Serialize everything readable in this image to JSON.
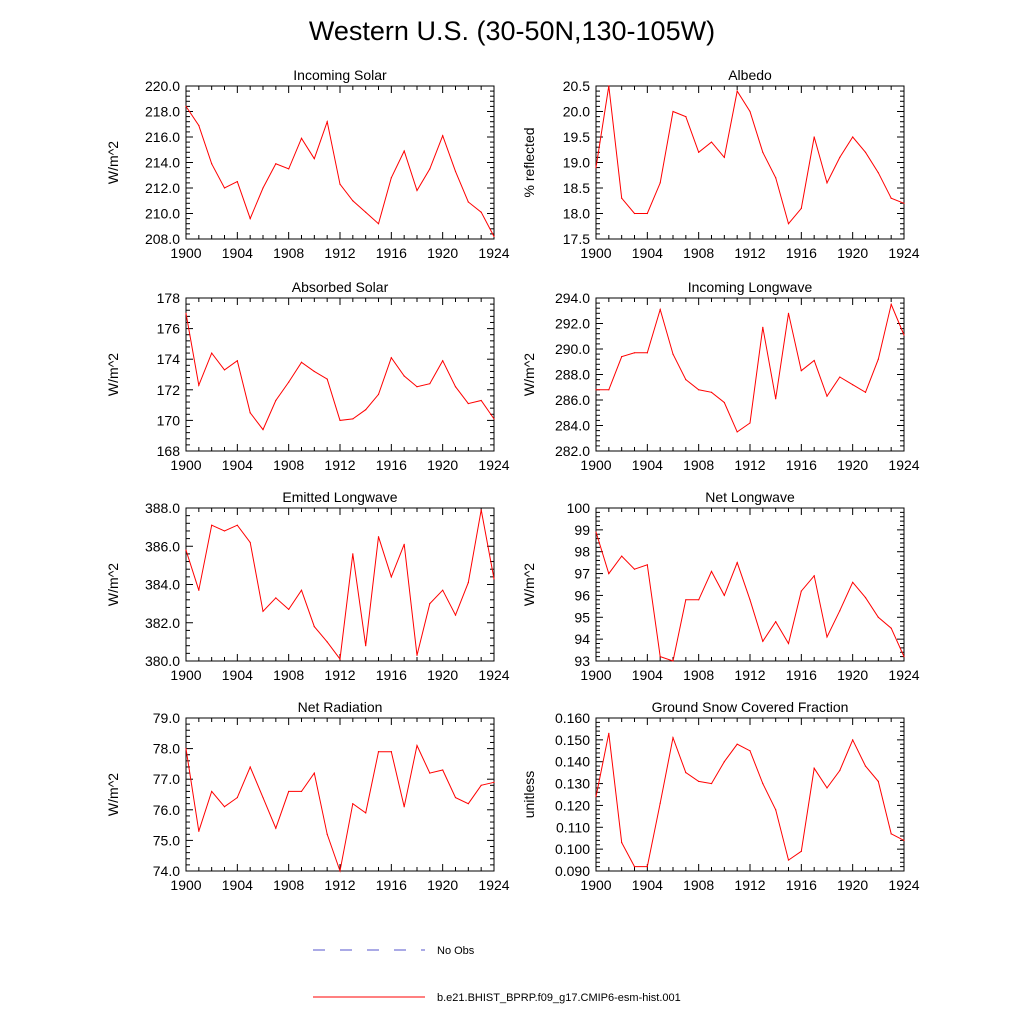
{
  "title": "Western U.S. (30-50N,130-105W)",
  "colors": {
    "model": "#ff0000",
    "obs": "#5555cc",
    "axis": "#000000"
  },
  "legend": {
    "obs_label": "No Obs",
    "model_label": "b.e21.BHIST_BPRP.f09_g17.CMIP6-esm-hist.001"
  },
  "chart_data": [
    {
      "type": "line",
      "title": "Incoming Solar",
      "ylabel": "W/m^2",
      "x": [
        1900,
        1901,
        1902,
        1903,
        1904,
        1905,
        1906,
        1907,
        1908,
        1909,
        1910,
        1911,
        1912,
        1913,
        1914,
        1915,
        1916,
        1917,
        1918,
        1919,
        1920,
        1921,
        1922,
        1923,
        1924
      ],
      "xlim": [
        1900,
        1924
      ],
      "xticks": [
        "1900",
        "1904",
        "1908",
        "1912",
        "1916",
        "1920",
        "1924"
      ],
      "ylim": [
        208.0,
        220.0
      ],
      "yticks": [
        "208.0",
        "210.0",
        "212.0",
        "214.0",
        "216.0",
        "218.0",
        "220.0"
      ],
      "yminor": 4,
      "values": [
        218.4,
        216.9,
        213.9,
        212.0,
        212.5,
        209.6,
        212.0,
        213.9,
        213.5,
        215.9,
        214.3,
        217.2,
        212.3,
        211.0,
        210.1,
        209.2,
        212.8,
        214.9,
        211.8,
        213.5,
        216.1,
        213.3,
        210.9,
        210.1,
        208.2
      ]
    },
    {
      "type": "line",
      "title": "Albedo",
      "ylabel": "% reflected",
      "x": [
        1900,
        1901,
        1902,
        1903,
        1904,
        1905,
        1906,
        1907,
        1908,
        1909,
        1910,
        1911,
        1912,
        1913,
        1914,
        1915,
        1916,
        1917,
        1918,
        1919,
        1920,
        1921,
        1922,
        1923,
        1924
      ],
      "xlim": [
        1900,
        1924
      ],
      "xticks": [
        "1900",
        "1904",
        "1908",
        "1912",
        "1916",
        "1920",
        "1924"
      ],
      "ylim": [
        17.5,
        20.5
      ],
      "yticks": [
        "17.5",
        "18.0",
        "18.5",
        "19.0",
        "19.5",
        "20.0",
        "20.5"
      ],
      "yminor": 4,
      "values": [
        18.9,
        20.5,
        18.3,
        18.0,
        18.0,
        18.6,
        20.0,
        19.9,
        19.2,
        19.4,
        19.1,
        20.4,
        20.0,
        19.2,
        18.7,
        17.8,
        18.1,
        19.5,
        18.6,
        19.1,
        19.5,
        19.2,
        18.8,
        18.3,
        18.2
      ]
    },
    {
      "type": "line",
      "title": "Absorbed Solar",
      "ylabel": "W/m^2",
      "x": [
        1900,
        1901,
        1902,
        1903,
        1904,
        1905,
        1906,
        1907,
        1908,
        1909,
        1910,
        1911,
        1912,
        1913,
        1914,
        1915,
        1916,
        1917,
        1918,
        1919,
        1920,
        1921,
        1922,
        1923,
        1924
      ],
      "xlim": [
        1900,
        1924
      ],
      "xticks": [
        "1900",
        "1904",
        "1908",
        "1912",
        "1916",
        "1920",
        "1924"
      ],
      "ylim": [
        168,
        178
      ],
      "yticks": [
        "168",
        "170",
        "172",
        "174",
        "176",
        "178"
      ],
      "yminor": 4,
      "values": [
        177.0,
        172.3,
        174.4,
        173.3,
        173.9,
        170.5,
        169.4,
        171.3,
        172.5,
        173.8,
        173.2,
        172.7,
        170.0,
        170.1,
        170.7,
        171.7,
        174.1,
        172.9,
        172.2,
        172.4,
        173.9,
        172.2,
        171.1,
        171.3,
        170.1
      ]
    },
    {
      "type": "line",
      "title": "Incoming Longwave",
      "ylabel": "W/m^2",
      "x": [
        1900,
        1901,
        1902,
        1903,
        1904,
        1905,
        1906,
        1907,
        1908,
        1909,
        1910,
        1911,
        1912,
        1913,
        1914,
        1915,
        1916,
        1917,
        1918,
        1919,
        1920,
        1921,
        1922,
        1923,
        1924
      ],
      "xlim": [
        1900,
        1924
      ],
      "xticks": [
        "1900",
        "1904",
        "1908",
        "1912",
        "1916",
        "1920",
        "1924"
      ],
      "ylim": [
        282.0,
        294.0
      ],
      "yticks": [
        "282.0",
        "284.0",
        "286.0",
        "288.0",
        "290.0",
        "292.0",
        "294.0"
      ],
      "yminor": 4,
      "values": [
        286.8,
        286.8,
        289.4,
        289.7,
        289.7,
        293.1,
        289.6,
        287.6,
        286.8,
        286.6,
        285.8,
        283.5,
        284.2,
        291.7,
        286.1,
        292.8,
        288.3,
        289.1,
        286.3,
        287.8,
        287.2,
        286.6,
        289.2,
        293.5,
        291.1
      ]
    },
    {
      "type": "line",
      "title": "Emitted Longwave",
      "ylabel": "W/m^2",
      "x": [
        1900,
        1901,
        1902,
        1903,
        1904,
        1905,
        1906,
        1907,
        1908,
        1909,
        1910,
        1911,
        1912,
        1913,
        1914,
        1915,
        1916,
        1917,
        1918,
        1919,
        1920,
        1921,
        1922,
        1923,
        1924
      ],
      "xlim": [
        1900,
        1924
      ],
      "xticks": [
        "1900",
        "1904",
        "1908",
        "1912",
        "1916",
        "1920",
        "1924"
      ],
      "ylim": [
        380.0,
        388.0
      ],
      "yticks": [
        "380.0",
        "382.0",
        "384.0",
        "386.0",
        "388.0"
      ],
      "yminor": 4,
      "values": [
        385.8,
        383.7,
        387.1,
        386.8,
        387.1,
        386.2,
        382.6,
        383.3,
        382.7,
        383.7,
        381.8,
        381.0,
        380.1,
        385.6,
        380.8,
        386.5,
        384.4,
        386.1,
        380.3,
        383.0,
        383.7,
        382.4,
        384.1,
        387.9,
        384.3
      ]
    },
    {
      "type": "line",
      "title": "Net Longwave",
      "ylabel": "W/m^2",
      "x": [
        1900,
        1901,
        1902,
        1903,
        1904,
        1905,
        1906,
        1907,
        1908,
        1909,
        1910,
        1911,
        1912,
        1913,
        1914,
        1915,
        1916,
        1917,
        1918,
        1919,
        1920,
        1921,
        1922,
        1923,
        1924
      ],
      "xlim": [
        1900,
        1924
      ],
      "xticks": [
        "1900",
        "1904",
        "1908",
        "1912",
        "1916",
        "1920",
        "1924"
      ],
      "ylim": [
        93,
        100
      ],
      "yticks": [
        "93",
        "94",
        "95",
        "96",
        "97",
        "98",
        "99",
        "100"
      ],
      "yminor": 4,
      "values": [
        98.9,
        97.0,
        97.8,
        97.2,
        97.4,
        93.2,
        93.0,
        95.8,
        95.8,
        97.1,
        96.0,
        97.5,
        95.8,
        93.9,
        94.8,
        93.8,
        96.2,
        96.9,
        94.1,
        95.3,
        96.6,
        95.9,
        95.0,
        94.5,
        93.2
      ]
    },
    {
      "type": "line",
      "title": "Net Radiation",
      "ylabel": "W/m^2",
      "x": [
        1900,
        1901,
        1902,
        1903,
        1904,
        1905,
        1906,
        1907,
        1908,
        1909,
        1910,
        1911,
        1912,
        1913,
        1914,
        1915,
        1916,
        1917,
        1918,
        1919,
        1920,
        1921,
        1922,
        1923,
        1924
      ],
      "xlim": [
        1900,
        1924
      ],
      "xticks": [
        "1900",
        "1904",
        "1908",
        "1912",
        "1916",
        "1920",
        "1924"
      ],
      "ylim": [
        74.0,
        79.0
      ],
      "yticks": [
        "74.0",
        "75.0",
        "76.0",
        "77.0",
        "78.0",
        "79.0"
      ],
      "yminor": 4,
      "values": [
        78.0,
        75.3,
        76.6,
        76.1,
        76.4,
        77.4,
        76.4,
        75.4,
        76.6,
        76.6,
        77.2,
        75.2,
        74.0,
        76.2,
        75.9,
        77.9,
        77.9,
        76.1,
        78.1,
        77.2,
        77.3,
        76.4,
        76.2,
        76.8,
        76.9
      ]
    },
    {
      "type": "line",
      "title": "Ground Snow Covered Fraction",
      "ylabel": "unitless",
      "x": [
        1900,
        1901,
        1902,
        1903,
        1904,
        1905,
        1906,
        1907,
        1908,
        1909,
        1910,
        1911,
        1912,
        1913,
        1914,
        1915,
        1916,
        1917,
        1918,
        1919,
        1920,
        1921,
        1922,
        1923,
        1924
      ],
      "xlim": [
        1900,
        1924
      ],
      "xticks": [
        "1900",
        "1904",
        "1908",
        "1912",
        "1916",
        "1920",
        "1924"
      ],
      "ylim": [
        0.09,
        0.16
      ],
      "yticks": [
        "0.090",
        "0.100",
        "0.110",
        "0.120",
        "0.130",
        "0.140",
        "0.150",
        "0.160"
      ],
      "yminor": 4,
      "values": [
        0.124,
        0.153,
        0.103,
        0.092,
        0.092,
        0.121,
        0.151,
        0.135,
        0.131,
        0.13,
        0.14,
        0.148,
        0.145,
        0.13,
        0.118,
        0.095,
        0.099,
        0.137,
        0.128,
        0.136,
        0.15,
        0.138,
        0.131,
        0.107,
        0.104
      ]
    }
  ]
}
